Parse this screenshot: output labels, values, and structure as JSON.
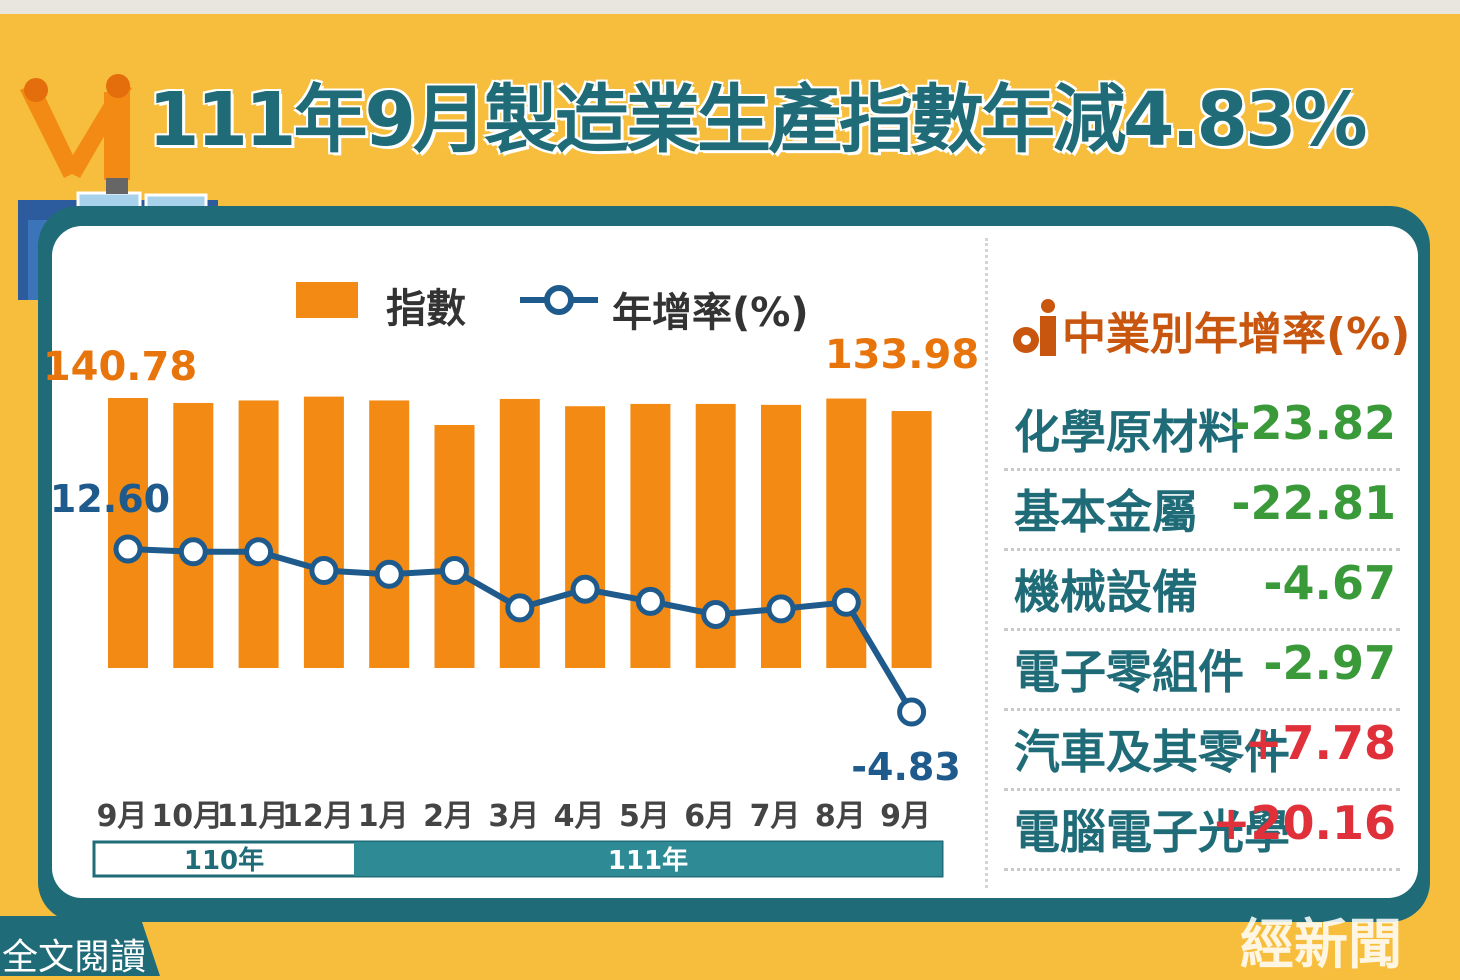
{
  "title": "111年9月製造業生產指數年減4.83%",
  "colors": {
    "bar": "#F28A14",
    "line": "#1F5A8C",
    "accent_label": "#E8740C",
    "teal": "#1F6C78",
    "negative": "#3A9A3A",
    "positive": "#E0303A"
  },
  "legend": {
    "bar_label": "指數",
    "line_label": "年增率(%)"
  },
  "chart_data": {
    "type": "bar",
    "categories": [
      "9月",
      "10月",
      "11月",
      "12月",
      "1月",
      "2月",
      "3月",
      "4月",
      "5月",
      "6月",
      "7月",
      "8月",
      "9月"
    ],
    "series": [
      {
        "name": "指數",
        "type": "bar",
        "values": [
          140.78,
          138.2,
          139.5,
          141.5,
          139.5,
          126.7,
          140.3,
          136.5,
          137.7,
          137.7,
          137.2,
          140.5,
          133.98
        ]
      },
      {
        "name": "年增率(%)",
        "type": "line",
        "values": [
          12.6,
          12.3,
          12.3,
          10.3,
          9.9,
          10.3,
          6.3,
          8.3,
          7.0,
          5.6,
          6.2,
          6.9,
          -4.83
        ]
      }
    ],
    "data_labels": {
      "first_bar": "140.78",
      "last_bar": "133.98",
      "first_rate": "12.60",
      "last_rate": "-4.83"
    },
    "year_groups": [
      {
        "label": "110年",
        "count": 4
      },
      {
        "label": "111年",
        "count": 9
      }
    ]
  },
  "industries": {
    "title": "中業別年增率(%)",
    "items": [
      {
        "name": "化學原材料",
        "value": "-23.82"
      },
      {
        "name": "基本金屬",
        "value": "-22.81"
      },
      {
        "name": "機械設備",
        "value": "-4.67"
      },
      {
        "name": "電子零組件",
        "value": "-2.97"
      },
      {
        "name": "汽車及其零件",
        "value": "+7.78"
      },
      {
        "name": "電腦電子光學",
        "value": "+20.16"
      }
    ]
  },
  "footer": {
    "read_more": "全文閱讀",
    "watermark": "經新聞"
  }
}
